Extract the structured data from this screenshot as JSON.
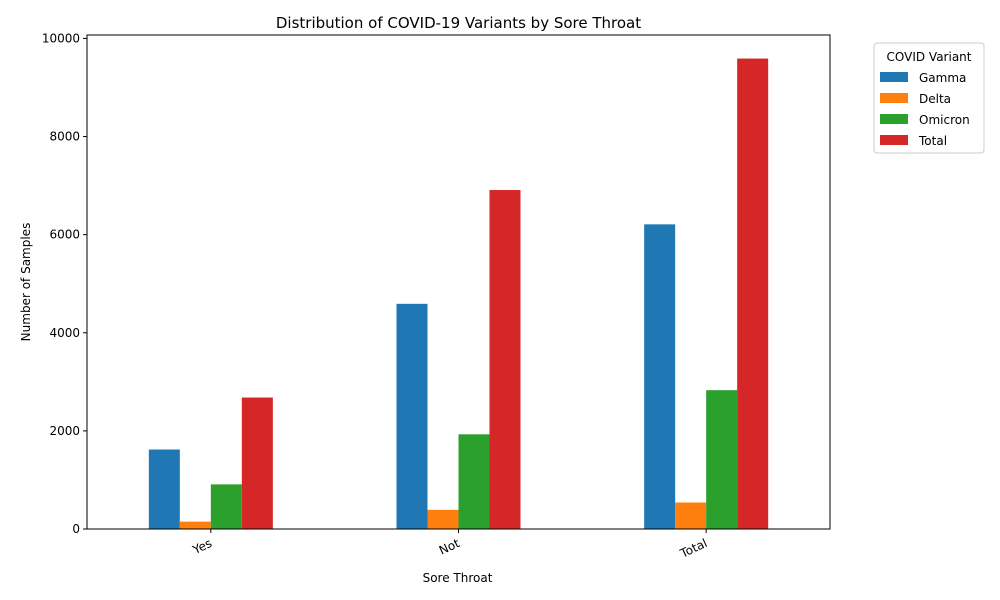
{
  "chart_data": {
    "type": "bar",
    "title": "Distribution of COVID-19 Variants by Sore Throat",
    "xlabel": "Sore Throat",
    "ylabel": "Number of Samples",
    "categories": [
      "Yes",
      "Not",
      "Total"
    ],
    "series": [
      {
        "name": "Gamma",
        "color": "#1f77b4",
        "values": [
          1620,
          4590,
          6210
        ]
      },
      {
        "name": "Delta",
        "color": "#ff7f0e",
        "values": [
          150,
          390,
          540
        ]
      },
      {
        "name": "Omicron",
        "color": "#2ca02c",
        "values": [
          910,
          1930,
          2830
        ]
      },
      {
        "name": "Total",
        "color": "#d62728",
        "values": [
          2680,
          6910,
          9590
        ]
      }
    ],
    "ylim": [
      0,
      10070
    ],
    "yticks": [
      0,
      2000,
      4000,
      6000,
      8000,
      10000
    ],
    "grid": false,
    "legend": {
      "title": "COVID Variant",
      "placement": "outside-top-right"
    }
  }
}
